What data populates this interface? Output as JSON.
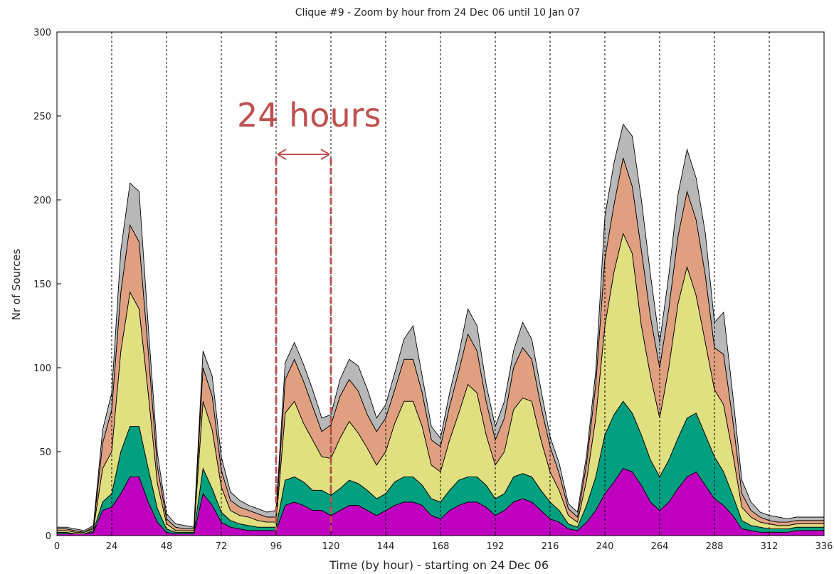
{
  "chart_data": {
    "type": "stacked_area",
    "title": "Clique #9 - Zoom by hour from 24 Dec 06 until 10 Jan 07",
    "x_label": "Time (by hour) - starting on 24 Dec 06",
    "y_label": "Nr of Sources",
    "xlim": [
      0,
      336
    ],
    "ylim": [
      0,
      300
    ],
    "xticks": [
      0,
      24,
      48,
      72,
      96,
      120,
      144,
      168,
      192,
      216,
      240,
      264,
      288,
      312,
      336
    ],
    "yticks": [
      0,
      50,
      100,
      150,
      200,
      250,
      300
    ],
    "grid": true,
    "annotation": {
      "text": "24 hours",
      "x": [
        96,
        120
      ],
      "color": "#c0504d"
    },
    "x": [
      0,
      4,
      8,
      12,
      16,
      20,
      24,
      28,
      32,
      36,
      40,
      44,
      48,
      52,
      56,
      60,
      64,
      68,
      72,
      76,
      80,
      84,
      88,
      92,
      96,
      100,
      104,
      108,
      112,
      116,
      120,
      124,
      128,
      132,
      136,
      140,
      144,
      148,
      152,
      156,
      160,
      164,
      168,
      172,
      176,
      180,
      184,
      188,
      192,
      196,
      200,
      204,
      208,
      212,
      216,
      220,
      224,
      228,
      232,
      236,
      240,
      244,
      248,
      252,
      256,
      260,
      264,
      268,
      272,
      276,
      280,
      284,
      288,
      292,
      296,
      300,
      304,
      308,
      312,
      316,
      320,
      324,
      328,
      332,
      336
    ],
    "series": [
      {
        "color": "#c000c0",
        "values": [
          1,
          1,
          1,
          1,
          2,
          15,
          17,
          25,
          35,
          35,
          20,
          8,
          2,
          1,
          1,
          1,
          25,
          18,
          8,
          5,
          4,
          3,
          3,
          3,
          3,
          18,
          20,
          18,
          15,
          15,
          12,
          15,
          18,
          18,
          15,
          12,
          15,
          18,
          20,
          20,
          18,
          12,
          10,
          15,
          18,
          20,
          20,
          17,
          12,
          15,
          20,
          22,
          20,
          15,
          10,
          8,
          4,
          3,
          8,
          15,
          25,
          32,
          40,
          38,
          30,
          20,
          15,
          20,
          28,
          35,
          38,
          30,
          22,
          18,
          12,
          4,
          3,
          2,
          2,
          2,
          2,
          3,
          3,
          3,
          3
        ]
      },
      {
        "color": "#00a080",
        "values": [
          1,
          1,
          0,
          0,
          1,
          5,
          8,
          25,
          30,
          30,
          20,
          8,
          2,
          1,
          1,
          1,
          15,
          10,
          6,
          4,
          3,
          3,
          2,
          2,
          2,
          15,
          15,
          14,
          12,
          12,
          12,
          13,
          15,
          13,
          12,
          10,
          10,
          14,
          15,
          15,
          12,
          10,
          10,
          12,
          15,
          15,
          15,
          13,
          10,
          10,
          15,
          15,
          15,
          12,
          10,
          7,
          3,
          2,
          10,
          20,
          35,
          40,
          40,
          35,
          30,
          25,
          20,
          25,
          30,
          35,
          35,
          30,
          25,
          20,
          12,
          5,
          3,
          3,
          2,
          2,
          2,
          2,
          2,
          2,
          2
        ]
      },
      {
        "color": "#e0e080",
        "values": [
          1,
          1,
          1,
          1,
          1,
          20,
          25,
          60,
          80,
          70,
          45,
          15,
          3,
          1,
          1,
          1,
          40,
          35,
          15,
          6,
          5,
          5,
          4,
          3,
          3,
          40,
          45,
          35,
          30,
          20,
          22,
          30,
          35,
          30,
          25,
          20,
          25,
          35,
          45,
          45,
          35,
          20,
          18,
          30,
          40,
          55,
          50,
          30,
          20,
          25,
          40,
          45,
          45,
          30,
          18,
          12,
          5,
          3,
          15,
          35,
          65,
          85,
          100,
          95,
          65,
          50,
          35,
          55,
          80,
          90,
          70,
          55,
          40,
          40,
          25,
          8,
          5,
          3,
          3,
          2,
          2,
          2,
          2,
          2,
          2
        ]
      },
      {
        "color": "#e0a080",
        "values": [
          1,
          1,
          1,
          0,
          1,
          15,
          25,
          35,
          40,
          40,
          25,
          10,
          3,
          2,
          1,
          1,
          20,
          20,
          10,
          6,
          5,
          4,
          4,
          3,
          3,
          20,
          25,
          25,
          20,
          15,
          20,
          25,
          25,
          25,
          20,
          20,
          20,
          20,
          25,
          25,
          20,
          15,
          15,
          20,
          25,
          30,
          25,
          20,
          15,
          20,
          25,
          30,
          25,
          20,
          15,
          10,
          4,
          3,
          10,
          20,
          40,
          40,
          45,
          40,
          45,
          35,
          30,
          35,
          40,
          45,
          45,
          40,
          25,
          30,
          20,
          8,
          4,
          3,
          2,
          2,
          2,
          2,
          2,
          2,
          2
        ]
      },
      {
        "color": "#b8b8b8",
        "values": [
          1,
          1,
          1,
          1,
          1,
          8,
          10,
          25,
          25,
          30,
          15,
          8,
          3,
          2,
          2,
          1,
          10,
          12,
          8,
          5,
          4,
          3,
          3,
          3,
          4,
          10,
          10,
          10,
          10,
          8,
          6,
          10,
          12,
          15,
          15,
          8,
          8,
          10,
          12,
          20,
          10,
          8,
          5,
          8,
          10,
          15,
          15,
          10,
          8,
          10,
          10,
          15,
          12,
          10,
          6,
          6,
          3,
          3,
          5,
          8,
          25,
          25,
          20,
          30,
          30,
          25,
          15,
          20,
          25,
          25,
          25,
          25,
          15,
          25,
          15,
          8,
          5,
          3,
          3,
          3,
          2,
          2,
          2,
          2,
          2
        ]
      }
    ]
  }
}
